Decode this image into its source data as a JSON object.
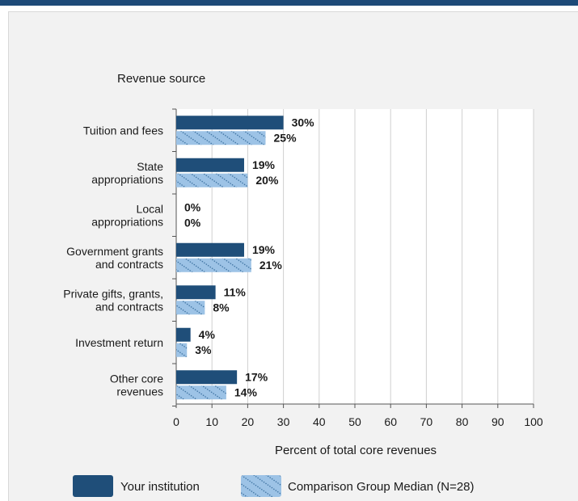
{
  "chart_data": {
    "type": "bar",
    "orientation": "horizontal",
    "category_axis_title": "Revenue source",
    "xlabel": "Percent of total core revenues",
    "xlim": [
      0,
      100
    ],
    "xticks": [
      0,
      10,
      20,
      30,
      40,
      50,
      60,
      70,
      80,
      90,
      100
    ],
    "grid": true,
    "legend_position": "bottom",
    "categories": [
      [
        "Tuition and fees"
      ],
      [
        "State",
        "appropriations"
      ],
      [
        "Local",
        "appropriations"
      ],
      [
        "Government grants",
        "and contracts"
      ],
      [
        "Private gifts, grants,",
        "and contracts"
      ],
      [
        "Investment return"
      ],
      [
        "Other core",
        "revenues"
      ]
    ],
    "series": [
      {
        "name": "Your institution",
        "color": "#1f4e79",
        "values": [
          30,
          19,
          0,
          19,
          11,
          4,
          17
        ],
        "labels": [
          "30%",
          "19%",
          "0%",
          "19%",
          "11%",
          "4%",
          "17%"
        ]
      },
      {
        "name": "Comparison Group Median (N=28)",
        "color": "#9dc3e6",
        "pattern": "dotted-hatch",
        "values": [
          25,
          20,
          0,
          21,
          8,
          3,
          14
        ],
        "labels": [
          "25%",
          "20%",
          "0%",
          "21%",
          "8%",
          "3%",
          "14%"
        ]
      }
    ]
  }
}
